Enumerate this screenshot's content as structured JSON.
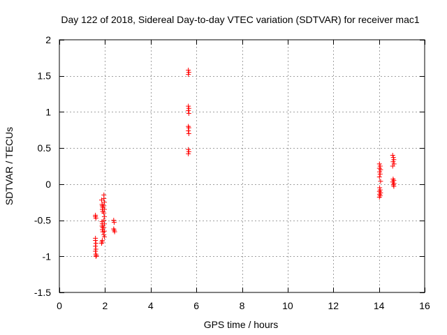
{
  "chart_data": {
    "type": "scatter",
    "title": "Day 122 of 2018, Sidereal Day-to-day VTEC variation (SDTVAR) for receiver mac1",
    "xlabel": "GPS time / hours",
    "ylabel": "SDTVAR / TECUs",
    "xlim": [
      0,
      16
    ],
    "ylim": [
      -1.5,
      2
    ],
    "xticks": [
      0,
      2,
      4,
      6,
      8,
      10,
      12,
      14,
      16
    ],
    "yticks": [
      -1.5,
      -1,
      -0.5,
      0,
      0.5,
      1,
      1.5,
      2
    ],
    "xtick_labels": [
      "0",
      "2",
      "4",
      "6",
      "8",
      "10",
      "12",
      "14",
      "16"
    ],
    "ytick_labels": [
      "-1.5",
      "-1",
      "-0.5",
      "0",
      "0.5",
      "1",
      "1.5",
      "2"
    ],
    "grid": true,
    "marker": "+",
    "color": "#ff0000",
    "series": [
      {
        "name": "SDTVAR",
        "points": [
          [
            1.58,
            -0.43
          ],
          [
            1.58,
            -0.45
          ],
          [
            1.6,
            -0.47
          ],
          [
            1.58,
            -0.75
          ],
          [
            1.58,
            -0.78
          ],
          [
            1.6,
            -0.82
          ],
          [
            1.58,
            -0.86
          ],
          [
            1.6,
            -0.9
          ],
          [
            1.58,
            -0.93
          ],
          [
            1.6,
            -0.97
          ],
          [
            1.62,
            -0.99
          ],
          [
            1.6,
            -1.0
          ],
          [
            1.85,
            -0.22
          ],
          [
            1.87,
            -0.28
          ],
          [
            1.88,
            -0.3
          ],
          [
            1.9,
            -0.32
          ],
          [
            1.88,
            -0.35
          ],
          [
            1.9,
            -0.38
          ],
          [
            1.87,
            -0.52
          ],
          [
            1.88,
            -0.55
          ],
          [
            1.87,
            -0.58
          ],
          [
            1.9,
            -0.6
          ],
          [
            1.88,
            -0.63
          ],
          [
            1.9,
            -0.66
          ],
          [
            1.88,
            -0.78
          ],
          [
            1.87,
            -0.8
          ],
          [
            1.85,
            -0.82
          ],
          [
            1.95,
            -0.15
          ],
          [
            1.95,
            -0.2
          ],
          [
            1.97,
            -0.25
          ],
          [
            1.95,
            -0.3
          ],
          [
            1.97,
            -0.35
          ],
          [
            1.95,
            -0.4
          ],
          [
            1.97,
            -0.45
          ],
          [
            1.95,
            -0.5
          ],
          [
            1.97,
            -0.55
          ],
          [
            1.95,
            -0.6
          ],
          [
            1.97,
            -0.65
          ],
          [
            1.95,
            -0.7
          ],
          [
            1.97,
            -0.73
          ],
          [
            2.38,
            -0.5
          ],
          [
            2.4,
            -0.53
          ],
          [
            2.38,
            -0.62
          ],
          [
            2.4,
            -0.64
          ],
          [
            2.42,
            -0.66
          ],
          [
            5.65,
            1.58
          ],
          [
            5.67,
            1.55
          ],
          [
            5.65,
            1.52
          ],
          [
            5.65,
            1.08
          ],
          [
            5.67,
            1.05
          ],
          [
            5.65,
            1.02
          ],
          [
            5.67,
            0.98
          ],
          [
            5.65,
            0.8
          ],
          [
            5.67,
            0.78
          ],
          [
            5.65,
            0.74
          ],
          [
            5.67,
            0.7
          ],
          [
            5.65,
            0.48
          ],
          [
            5.67,
            0.45
          ],
          [
            5.65,
            0.42
          ],
          [
            14.02,
            0.28
          ],
          [
            14.05,
            0.25
          ],
          [
            14.02,
            0.22
          ],
          [
            14.07,
            0.2
          ],
          [
            14.03,
            0.17
          ],
          [
            14.05,
            0.14
          ],
          [
            14.02,
            0.1
          ],
          [
            14.07,
            0.04
          ],
          [
            14.03,
            -0.05
          ],
          [
            14.05,
            -0.08
          ],
          [
            14.02,
            -0.1
          ],
          [
            14.07,
            -0.12
          ],
          [
            14.03,
            -0.14
          ],
          [
            14.05,
            -0.16
          ],
          [
            14.02,
            -0.18
          ],
          [
            14.6,
            0.4
          ],
          [
            14.63,
            0.37
          ],
          [
            14.65,
            0.34
          ],
          [
            14.62,
            0.31
          ],
          [
            14.66,
            0.28
          ],
          [
            14.6,
            0.25
          ],
          [
            14.62,
            0.07
          ],
          [
            14.65,
            0.05
          ],
          [
            14.6,
            0.03
          ],
          [
            14.66,
            0.01
          ],
          [
            14.63,
            -0.01
          ],
          [
            14.65,
            -0.03
          ]
        ]
      }
    ]
  }
}
